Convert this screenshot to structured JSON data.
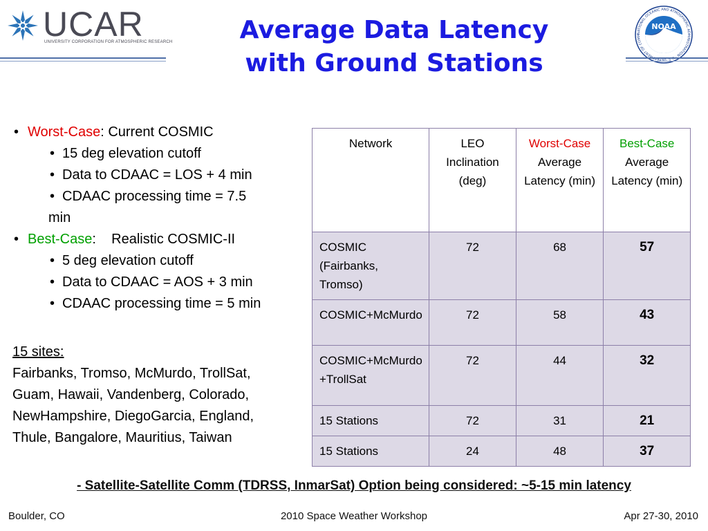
{
  "header": {
    "ucar_word": "UCAR",
    "ucar_subtitle": "UNIVERSITY CORPORATION FOR ATMOSPHERIC RESEARCH",
    "title_line1": "Average Data Latency",
    "title_line2": "with Ground Stations",
    "noaa_text": "NOAA",
    "noaa_ring_text": "NATIONAL OCEANIC AND ATMOSPHERIC ADMINISTRATION · U.S. DEPARTMENT OF COMMERCE"
  },
  "bullets": {
    "worst_label": "Worst-Case",
    "worst_text": ": Current COSMIC",
    "worst_items": [
      "15 deg elevation cutoff",
      "Data to CDAAC = LOS + 4 min",
      "CDAAC processing time = 7.5",
      "min"
    ],
    "best_label": "Best-Case",
    "best_text": ":    Realistic COSMIC-II",
    "best_items": [
      "5 deg elevation cutoff",
      "Data to CDAAC = AOS + 3 min",
      "CDAAC processing time = 5 min"
    ]
  },
  "sites": {
    "heading": "15 sites:",
    "lines": [
      "Fairbanks, Tromso, McMurdo, TrollSat,",
      "Guam, Hawaii, Vandenberg, Colorado,",
      "NewHampshire, DiegoGarcia, England,",
      "Thule, Bangalore, Mauritius, Taiwan"
    ]
  },
  "table": {
    "headers": {
      "network": "Network",
      "inclination": "LEO Inclination (deg)",
      "worst_colored": "Worst-Case",
      "worst_rest": "Average Latency (min)",
      "best_colored": "Best-Case",
      "best_rest": "Average Latency (min)"
    },
    "rows": [
      {
        "network": "COSMIC (Fairbanks, Tromso)",
        "inclination": "72",
        "worst": "68",
        "best": "57"
      },
      {
        "network": "COSMIC+McMurdo",
        "inclination": "72",
        "worst": "58",
        "best": "43"
      },
      {
        "network": "COSMIC+McMurdo+TrollSat",
        "inclination": "72",
        "worst": "44",
        "best": "32"
      },
      {
        "network": "15 Stations",
        "inclination": "72",
        "worst": "31",
        "best": "21"
      },
      {
        "network": "15 Stations",
        "inclination": "24",
        "worst": "48",
        "best": "37"
      }
    ]
  },
  "note": "- Satellite-Satellite Comm (TDRSS, InmarSat) Option being considered: ~5-15 min latency",
  "footer": {
    "left": "Boulder, CO",
    "center": "2010 Space Weather Workshop",
    "right": "Apr 27-30, 2010"
  },
  "colors": {
    "title": "#1b1be0",
    "worst": "#e00000",
    "best": "#00a000",
    "table_fill": "#ddd9e6",
    "table_border": "#8c7fa8"
  }
}
